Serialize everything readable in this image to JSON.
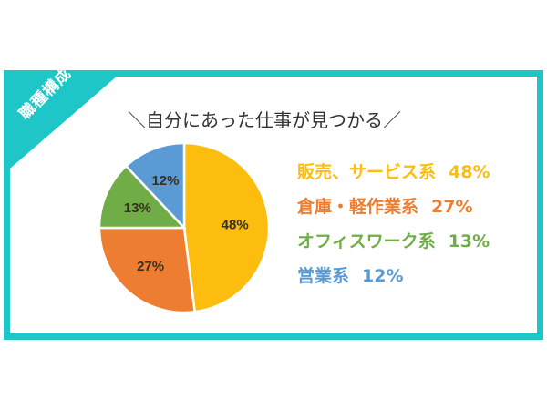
{
  "corner_label": "職種構成",
  "title": "＼自分にあった仕事が見つかる／",
  "colors": {
    "frame": "#1ec6c8"
  },
  "chart_data": {
    "type": "pie",
    "start": "top, clockwise",
    "slices": [
      {
        "name": "販売、サービス系",
        "value": 48,
        "label": "48%",
        "legend_value": "48%",
        "color": "#fdbd0f"
      },
      {
        "name": "倉庫・軽作業系",
        "value": 27,
        "label": "27%",
        "legend_value": "27%",
        "color": "#ed7d31"
      },
      {
        "name": "オフィスワーク系",
        "value": 13,
        "label": "13%",
        "legend_value": "13%",
        "color": "#70ad47"
      },
      {
        "name": "営業系",
        "value": 12,
        "label": "12%",
        "legend_value": "12%",
        "color": "#5b9bd5"
      }
    ],
    "legend": "right"
  }
}
